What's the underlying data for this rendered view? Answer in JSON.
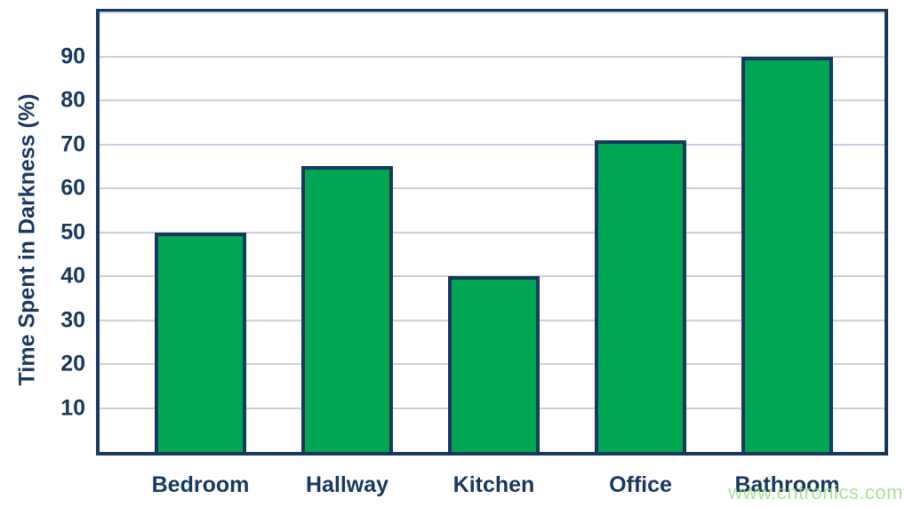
{
  "chart_data": {
    "type": "bar",
    "categories": [
      "Bedroom",
      "Hallway",
      "Kitchen",
      "Office",
      "Bathroom"
    ],
    "values": [
      50,
      65,
      40,
      71,
      90
    ],
    "title": "",
    "xlabel": "",
    "ylabel": "Time Spent in Darkness (%)",
    "ylim": [
      0,
      100
    ],
    "yticks": [
      10,
      20,
      30,
      40,
      50,
      60,
      70,
      80,
      90
    ],
    "grid": true,
    "legend": "none",
    "bar_fill_color": "#00a651",
    "bar_border_color": "#17395f",
    "axis_border_color": "#17395f",
    "gridline_color": "#c9cede",
    "label_color": "#17395f"
  },
  "watermark": {
    "text": "www.cntronics.com",
    "color": "#b7e7a4"
  }
}
